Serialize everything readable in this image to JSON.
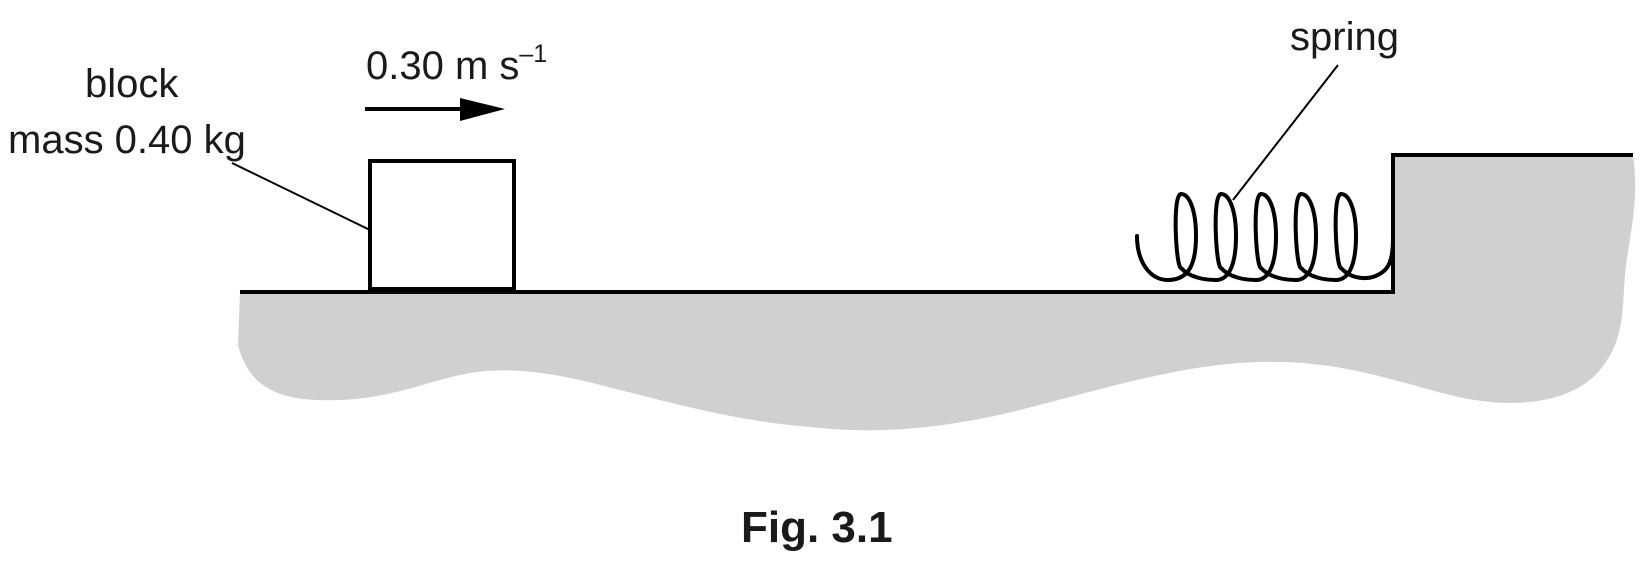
{
  "block": {
    "label_line1": "block",
    "label_line2": "mass 0.40 kg"
  },
  "velocity": {
    "value_unit": "0.30 m s",
    "exponent": "–1"
  },
  "spring": {
    "label": "spring"
  },
  "figure": {
    "caption": "Fig. 3.1"
  },
  "colors": {
    "ground_fill": "#d0d0d0",
    "line": "#000000",
    "text": "#1a1a1a"
  }
}
